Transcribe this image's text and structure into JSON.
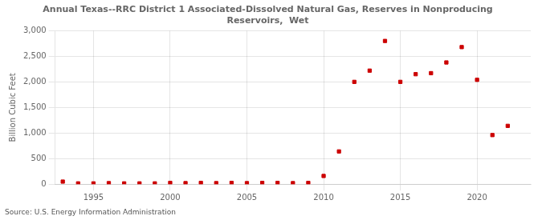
{
  "chart_data": {
    "type": "scatter",
    "title": "Annual Texas--RRC District 1 Associated-Dissolved Natural Gas, Reserves in Nonproducing\nReservoirs,  Wet",
    "ylabel": "Billion Cubic Feet",
    "source": "Source: U.S. Energy Information Administration",
    "x": [
      1993,
      1994,
      1995,
      1996,
      1997,
      1998,
      1999,
      2000,
      2001,
      2002,
      2003,
      2004,
      2005,
      2006,
      2007,
      2008,
      2009,
      2010,
      2011,
      2012,
      2013,
      2014,
      2015,
      2016,
      2017,
      2018,
      2019,
      2020,
      2021,
      2022
    ],
    "values": [
      50,
      15,
      15,
      20,
      15,
      15,
      15,
      25,
      20,
      25,
      20,
      25,
      20,
      25,
      25,
      20,
      25,
      160,
      640,
      2000,
      2220,
      2800,
      2000,
      2150,
      2170,
      2380,
      2680,
      2040,
      960,
      1140
    ],
    "color": "#cc0000",
    "marker": "square",
    "xlim": [
      1992.5,
      2023.5
    ],
    "ylim": [
      0,
      3000
    ],
    "xticks": [
      1995,
      2000,
      2005,
      2010,
      2015,
      2020
    ],
    "yticks": [
      0,
      500,
      {
        "value": 1000,
        "label": "1,000"
      },
      {
        "value": 1500,
        "label": "1,500"
      },
      {
        "value": 2000,
        "label": "2,000"
      },
      {
        "value": 2500,
        "label": "2,500"
      },
      {
        "value": 3000,
        "label": "3,000"
      }
    ],
    "grid": true
  }
}
